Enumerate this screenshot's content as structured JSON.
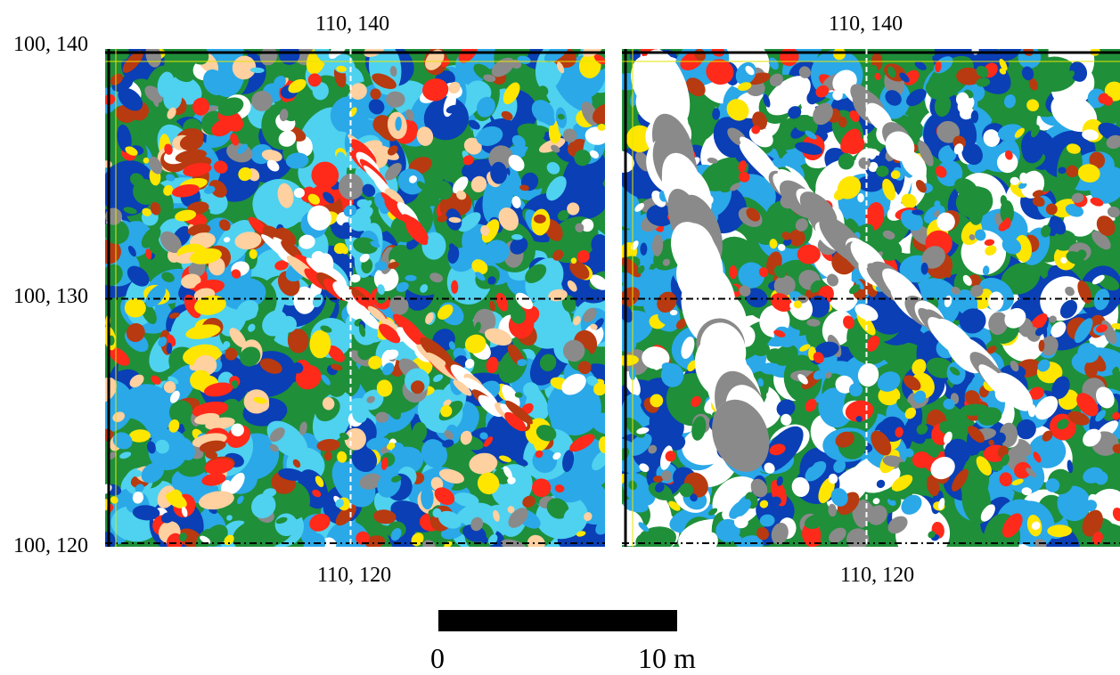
{
  "labels": {
    "left_top": "110, 140",
    "right_top": "110, 140",
    "y_top": "100, 140",
    "y_mid": "100, 130",
    "y_bottom": "100, 120",
    "left_bottom": "110, 120",
    "right_bottom": "110, 120"
  },
  "scale": {
    "start": "0",
    "end": "10 m"
  },
  "colors": {
    "background": "#1f8f3a",
    "palette_left": [
      "#1f8f3a",
      "#0a3fb5",
      "#2aa8e8",
      "#4fd1f0",
      "#b83a10",
      "#ff2a1a",
      "#ffe600",
      "#ffd0a0",
      "#ffffff",
      "#8a8a8a"
    ],
    "palette_right": [
      "#0a3fb5",
      "#1f8f3a",
      "#2aa8e8",
      "#ffffff",
      "#8a8a8a",
      "#ff2a1a",
      "#b83a10",
      "#ffe600"
    ]
  },
  "panels": [
    {
      "name": "left-magnetometer-grid",
      "style": "left"
    },
    {
      "name": "right-magnetometer-grid",
      "style": "right"
    }
  ]
}
